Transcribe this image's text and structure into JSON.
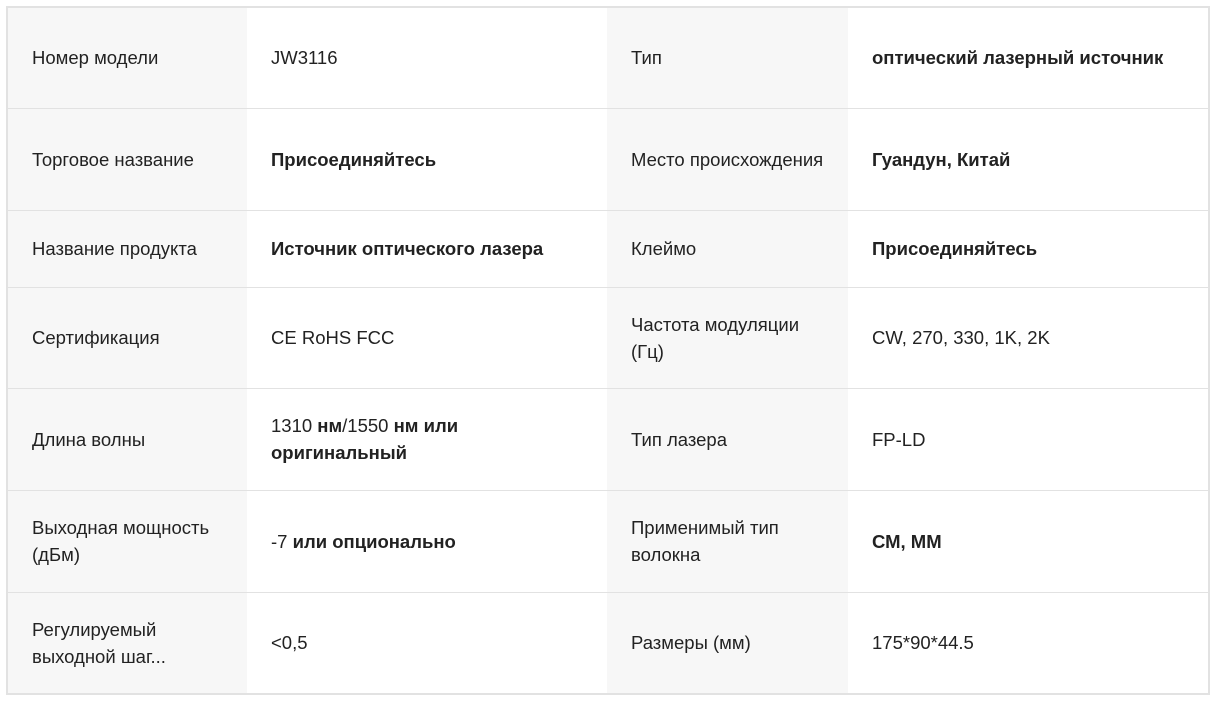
{
  "rows": [
    {
      "l1": "Номер модели",
      "v1": [
        {
          "t": "JW3116",
          "b": false
        }
      ],
      "l2": "Тип",
      "v2": [
        {
          "t": "оптический лазерный источник",
          "b": true
        }
      ]
    },
    {
      "l1": "Торговое название",
      "v1": [
        {
          "t": "Присоединяйтесь",
          "b": true
        }
      ],
      "l2": "Место происхождения",
      "v2": [
        {
          "t": "Гуандун, Китай",
          "b": true
        }
      ]
    },
    {
      "l1": "Название продукта",
      "v1": [
        {
          "t": "Источник оптического лазера",
          "b": true
        }
      ],
      "l2": "Клеймо",
      "v2": [
        {
          "t": "Присоединяйтесь",
          "b": true
        }
      ]
    },
    {
      "l1": "Сертификация",
      "v1": [
        {
          "t": "CE RoHS FCC",
          "b": false
        }
      ],
      "l2": "Частота модуляции (Гц)",
      "v2": [
        {
          "t": "CW, 270, 330, 1K, 2K",
          "b": false
        }
      ]
    },
    {
      "l1": "Длина волны",
      "v1": [
        {
          "t": "1310 ",
          "b": false
        },
        {
          "t": "нм",
          "b": true
        },
        {
          "t": "/1550 ",
          "b": false
        },
        {
          "t": "нм или оригинальный",
          "b": true
        }
      ],
      "l2": "Тип лазера",
      "v2": [
        {
          "t": "FP-LD",
          "b": false
        }
      ]
    },
    {
      "l1": "Выходная мощность (дБм)",
      "v1": [
        {
          "t": "-7 ",
          "b": false
        },
        {
          "t": "или опционально",
          "b": true
        }
      ],
      "l2": "Применимый тип волокна",
      "v2": [
        {
          "t": "СМ, ММ",
          "b": true
        }
      ]
    },
    {
      "l1": "Регулируемый выходной шаг...",
      "v1": [
        {
          "t": "<0,5",
          "b": false
        }
      ],
      "l2": "Размеры (мм)",
      "v2": [
        {
          "t": "175*90*44.5",
          "b": false
        }
      ]
    }
  ]
}
